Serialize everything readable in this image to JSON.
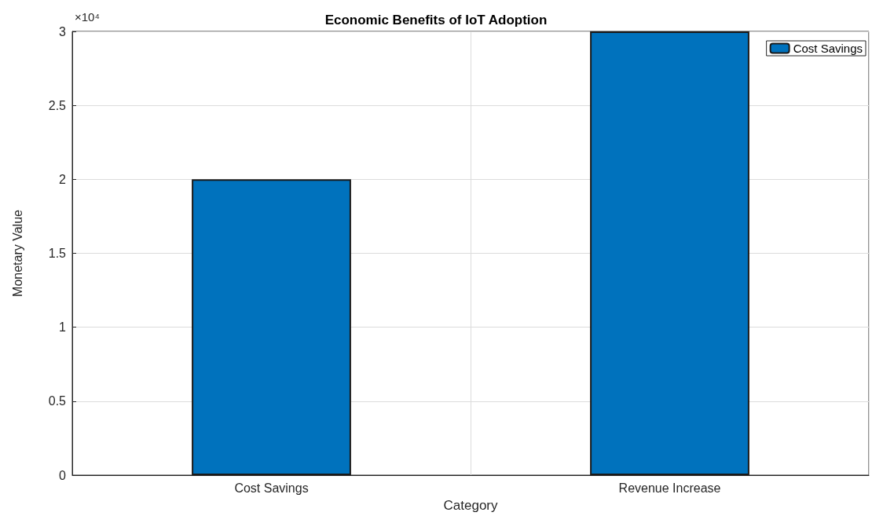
{
  "chart_data": {
    "type": "bar",
    "title": "Economic Benefits of IoT Adoption",
    "xlabel": "Category",
    "ylabel": "Monetary Value",
    "categories": [
      "Cost Savings",
      "Revenue Increase"
    ],
    "series": [
      {
        "name": "Cost Savings",
        "color": "#0072bd",
        "values": [
          2,
          3
        ]
      }
    ],
    "ylim": [
      0,
      3
    ],
    "yticks": [
      0,
      0.5,
      1,
      1.5,
      2,
      2.5,
      3
    ],
    "annotations": [
      "×10⁴"
    ],
    "grid": true,
    "legend": "top right"
  }
}
